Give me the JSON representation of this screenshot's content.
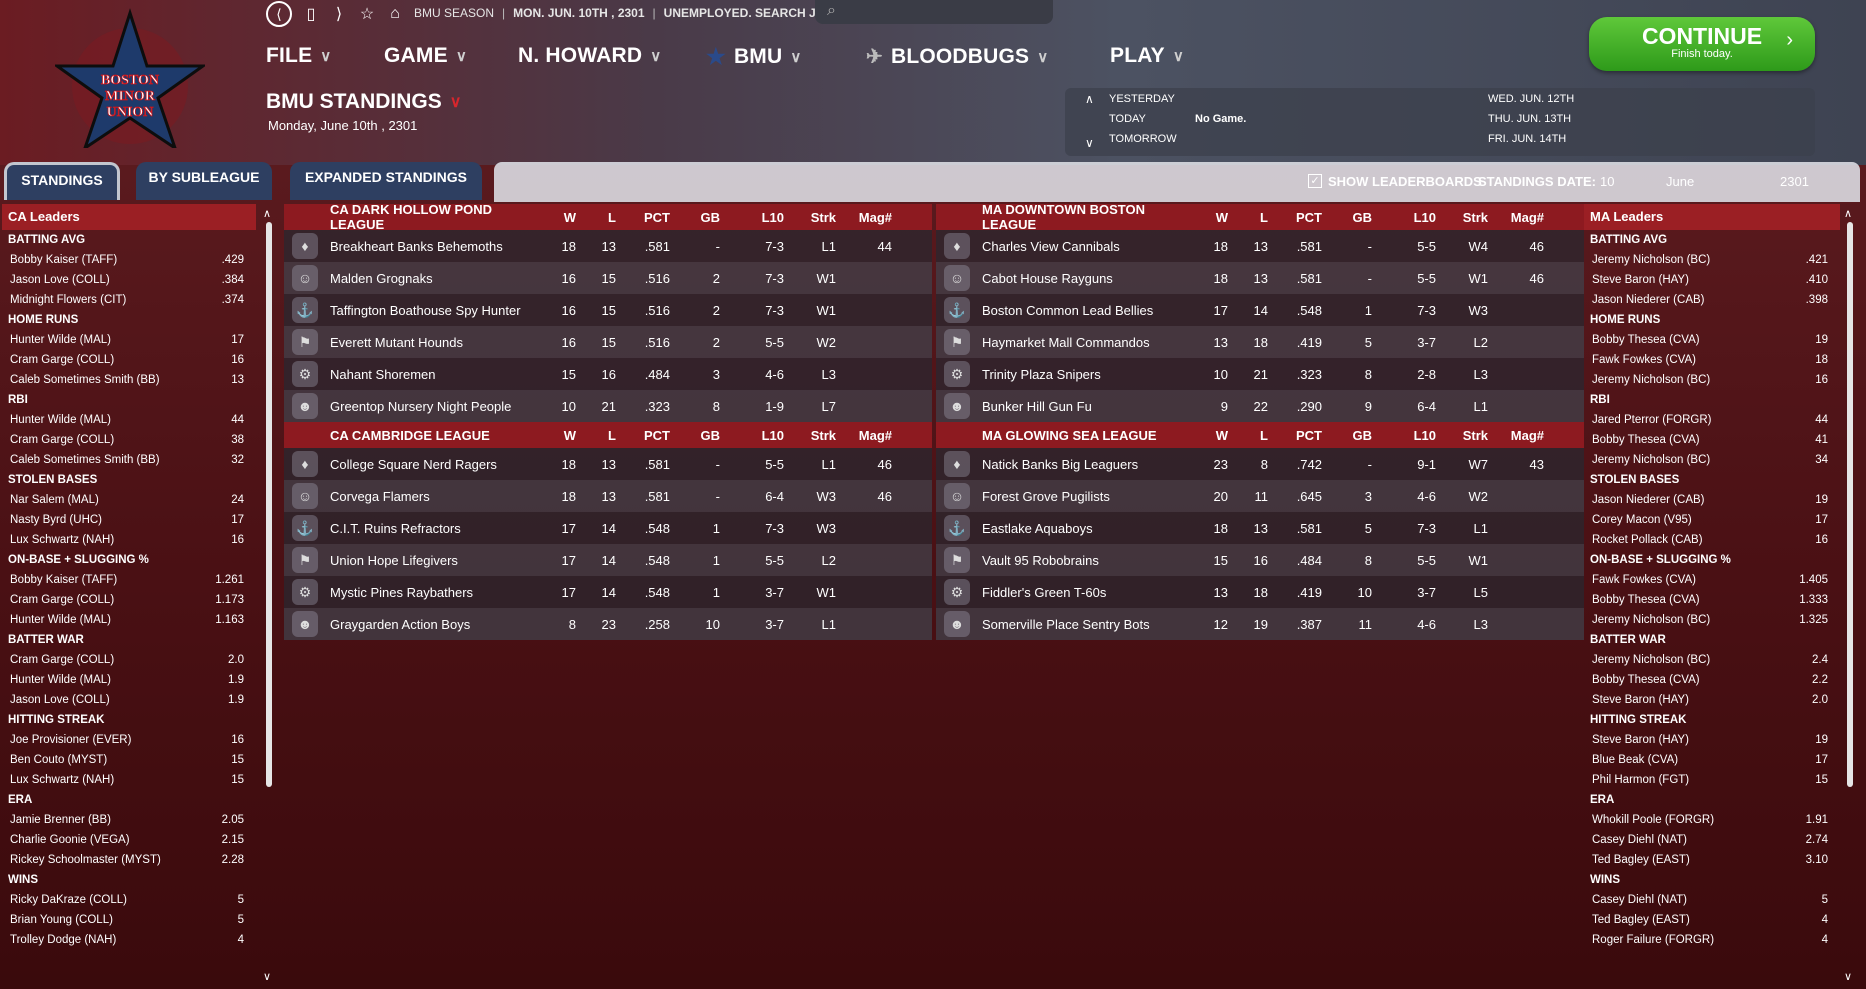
{
  "nav": {
    "back_icon": "back-icon",
    "crumbs": [
      "BMU SEASON",
      "MON. JUN. 10TH , 2301",
      "UNEMPLOYED. SEARCH JOBS..."
    ],
    "menus": [
      {
        "label": "FILE"
      },
      {
        "label": "GAME"
      },
      {
        "label": "N. HOWARD"
      },
      {
        "label": "BMU"
      },
      {
        "label": "BLOODBUGS"
      },
      {
        "label": "PLAY"
      }
    ]
  },
  "logo": {
    "line1": "BOSTON",
    "line2": "MINOR",
    "line3": "UNION"
  },
  "page": {
    "title": "BMU STANDINGS",
    "date": "Monday, June 10th , 2301"
  },
  "continue": {
    "label": "CONTINUE",
    "sub": "Finish today."
  },
  "schedule": {
    "yesterday": "YESTERDAY",
    "today": "TODAY",
    "today_value": "No Game.",
    "tomorrow": "TOMORROW",
    "upcoming": [
      "WED. JUN. 12TH",
      "THU. JUN. 13TH",
      "FRI. JUN. 14TH"
    ]
  },
  "tabs": [
    "STANDINGS",
    "BY SUBLEAGUE",
    "EXPANDED STANDINGS"
  ],
  "options": {
    "show_leaderboards": "SHOW LEADERBOARDS",
    "standings_date_label": "STANDINGS DATE:",
    "day": "10",
    "month": "June",
    "year": "2301"
  },
  "columns": [
    "W",
    "L",
    "PCT",
    "GB",
    "L10",
    "Strk",
    "Mag#"
  ],
  "leagues": [
    {
      "name": "CA DARK HOLLOW POND LEAGUE",
      "teams": [
        {
          "name": "Breakheart Banks Behemoths",
          "w": "18",
          "l": "13",
          "pct": ".581",
          "gb": "-",
          "l10": "7-3",
          "strk": "L1",
          "mag": "44"
        },
        {
          "name": "Malden Grognaks",
          "w": "16",
          "l": "15",
          "pct": ".516",
          "gb": "2",
          "l10": "7-3",
          "strk": "W1",
          "mag": ""
        },
        {
          "name": "Taffington Boathouse Spy Hunter",
          "w": "16",
          "l": "15",
          "pct": ".516",
          "gb": "2",
          "l10": "7-3",
          "strk": "W1",
          "mag": ""
        },
        {
          "name": "Everett Mutant Hounds",
          "w": "16",
          "l": "15",
          "pct": ".516",
          "gb": "2",
          "l10": "5-5",
          "strk": "W2",
          "mag": ""
        },
        {
          "name": "Nahant Shoremen",
          "w": "15",
          "l": "16",
          "pct": ".484",
          "gb": "3",
          "l10": "4-6",
          "strk": "L3",
          "mag": ""
        },
        {
          "name": "Greentop Nursery Night People",
          "w": "10",
          "l": "21",
          "pct": ".323",
          "gb": "8",
          "l10": "1-9",
          "strk": "L7",
          "mag": ""
        }
      ]
    },
    {
      "name": "CA CAMBRIDGE LEAGUE",
      "teams": [
        {
          "name": "College Square Nerd Ragers",
          "w": "18",
          "l": "13",
          "pct": ".581",
          "gb": "-",
          "l10": "5-5",
          "strk": "L1",
          "mag": "46"
        },
        {
          "name": "Corvega Flamers",
          "w": "18",
          "l": "13",
          "pct": ".581",
          "gb": "-",
          "l10": "6-4",
          "strk": "W3",
          "mag": "46"
        },
        {
          "name": "C.I.T. Ruins Refractors",
          "w": "17",
          "l": "14",
          "pct": ".548",
          "gb": "1",
          "l10": "7-3",
          "strk": "W3",
          "mag": ""
        },
        {
          "name": "Union Hope Lifegivers",
          "w": "17",
          "l": "14",
          "pct": ".548",
          "gb": "1",
          "l10": "5-5",
          "strk": "L2",
          "mag": ""
        },
        {
          "name": "Mystic Pines Raybathers",
          "w": "17",
          "l": "14",
          "pct": ".548",
          "gb": "1",
          "l10": "3-7",
          "strk": "W1",
          "mag": ""
        },
        {
          "name": "Graygarden Action Boys",
          "w": "8",
          "l": "23",
          "pct": ".258",
          "gb": "10",
          "l10": "3-7",
          "strk": "L1",
          "mag": ""
        }
      ]
    },
    {
      "name": "MA DOWNTOWN BOSTON LEAGUE",
      "teams": [
        {
          "name": "Charles View Cannibals",
          "w": "18",
          "l": "13",
          "pct": ".581",
          "gb": "-",
          "l10": "5-5",
          "strk": "W4",
          "mag": "46"
        },
        {
          "name": "Cabot House Rayguns",
          "w": "18",
          "l": "13",
          "pct": ".581",
          "gb": "-",
          "l10": "5-5",
          "strk": "W1",
          "mag": "46"
        },
        {
          "name": "Boston Common Lead Bellies",
          "w": "17",
          "l": "14",
          "pct": ".548",
          "gb": "1",
          "l10": "7-3",
          "strk": "W3",
          "mag": ""
        },
        {
          "name": "Haymarket Mall Commandos",
          "w": "13",
          "l": "18",
          "pct": ".419",
          "gb": "5",
          "l10": "3-7",
          "strk": "L2",
          "mag": ""
        },
        {
          "name": "Trinity Plaza Snipers",
          "w": "10",
          "l": "21",
          "pct": ".323",
          "gb": "8",
          "l10": "2-8",
          "strk": "L3",
          "mag": ""
        },
        {
          "name": "Bunker Hill Gun Fu",
          "w": "9",
          "l": "22",
          "pct": ".290",
          "gb": "9",
          "l10": "6-4",
          "strk": "L1",
          "mag": ""
        }
      ]
    },
    {
      "name": "MA GLOWING SEA LEAGUE",
      "teams": [
        {
          "name": "Natick Banks Big Leaguers",
          "w": "23",
          "l": "8",
          "pct": ".742",
          "gb": "-",
          "l10": "9-1",
          "strk": "W7",
          "mag": "43"
        },
        {
          "name": "Forest Grove Pugilists",
          "w": "20",
          "l": "11",
          "pct": ".645",
          "gb": "3",
          "l10": "4-6",
          "strk": "W2",
          "mag": ""
        },
        {
          "name": "Eastlake Aquaboys",
          "w": "18",
          "l": "13",
          "pct": ".581",
          "gb": "5",
          "l10": "7-3",
          "strk": "L1",
          "mag": ""
        },
        {
          "name": "Vault 95 Robobrains",
          "w": "15",
          "l": "16",
          "pct": ".484",
          "gb": "8",
          "l10": "5-5",
          "strk": "W1",
          "mag": ""
        },
        {
          "name": "Fiddler's Green T-60s",
          "w": "13",
          "l": "18",
          "pct": ".419",
          "gb": "10",
          "l10": "3-7",
          "strk": "L5",
          "mag": ""
        },
        {
          "name": "Somerville Place Sentry Bots",
          "w": "12",
          "l": "19",
          "pct": ".387",
          "gb": "11",
          "l10": "4-6",
          "strk": "L3",
          "mag": ""
        }
      ]
    }
  ],
  "ca_leaders": {
    "title": "CA Leaders",
    "categories": [
      {
        "name": "BATTING AVG",
        "rows": [
          [
            "Bobby Kaiser (TAFF)",
            ".429"
          ],
          [
            "Jason Love (COLL)",
            ".384"
          ],
          [
            "Midnight Flowers (CIT)",
            ".374"
          ]
        ]
      },
      {
        "name": "HOME RUNS",
        "rows": [
          [
            "Hunter Wilde (MAL)",
            "17"
          ],
          [
            "Cram Garge (COLL)",
            "16"
          ],
          [
            "Caleb Sometimes Smith (BB)",
            "13"
          ]
        ]
      },
      {
        "name": "RBI",
        "rows": [
          [
            "Hunter Wilde (MAL)",
            "44"
          ],
          [
            "Cram Garge (COLL)",
            "38"
          ],
          [
            "Caleb Sometimes Smith (BB)",
            "32"
          ]
        ]
      },
      {
        "name": "STOLEN BASES",
        "rows": [
          [
            "Nar Salem (MAL)",
            "24"
          ],
          [
            "Nasty Byrd (UHC)",
            "17"
          ],
          [
            "Lux Schwartz (NAH)",
            "16"
          ]
        ]
      },
      {
        "name": "ON-BASE + SLUGGING %",
        "rows": [
          [
            "Bobby Kaiser (TAFF)",
            "1.261"
          ],
          [
            "Cram Garge (COLL)",
            "1.173"
          ],
          [
            "Hunter Wilde (MAL)",
            "1.163"
          ]
        ]
      },
      {
        "name": "BATTER WAR",
        "rows": [
          [
            "Cram Garge (COLL)",
            "2.0"
          ],
          [
            "Hunter Wilde (MAL)",
            "1.9"
          ],
          [
            "Jason Love (COLL)",
            "1.9"
          ]
        ]
      },
      {
        "name": "HITTING STREAK",
        "rows": [
          [
            "Joe Provisioner (EVER)",
            "16"
          ],
          [
            "Ben Couto (MYST)",
            "15"
          ],
          [
            "Lux Schwartz (NAH)",
            "15"
          ]
        ]
      },
      {
        "name": "ERA",
        "rows": [
          [
            "Jamie Brenner (BB)",
            "2.05"
          ],
          [
            "Charlie Goonie (VEGA)",
            "2.15"
          ],
          [
            "Rickey Schoolmaster (MYST)",
            "2.28"
          ]
        ]
      },
      {
        "name": "WINS",
        "rows": [
          [
            "Ricky DaKraze (COLL)",
            "5"
          ],
          [
            "Brian Young (COLL)",
            "5"
          ],
          [
            "Trolley Dodge (NAH)",
            "4"
          ]
        ]
      }
    ]
  },
  "ma_leaders": {
    "title": "MA Leaders",
    "categories": [
      {
        "name": "BATTING AVG",
        "rows": [
          [
            "Jeremy Nicholson (BC)",
            ".421"
          ],
          [
            "Steve Baron (HAY)",
            ".410"
          ],
          [
            "Jason Niederer (CAB)",
            ".398"
          ]
        ]
      },
      {
        "name": "HOME RUNS",
        "rows": [
          [
            "Bobby Thesea (CVA)",
            "19"
          ],
          [
            "Fawk Fowkes (CVA)",
            "18"
          ],
          [
            "Jeremy Nicholson (BC)",
            "16"
          ]
        ]
      },
      {
        "name": "RBI",
        "rows": [
          [
            "Jared Pterror (FORGR)",
            "44"
          ],
          [
            "Bobby Thesea (CVA)",
            "41"
          ],
          [
            "Jeremy Nicholson (BC)",
            "34"
          ]
        ]
      },
      {
        "name": "STOLEN BASES",
        "rows": [
          [
            "Jason Niederer (CAB)",
            "19"
          ],
          [
            "Corey Macon (V95)",
            "17"
          ],
          [
            "Rocket Pollack (CAB)",
            "16"
          ]
        ]
      },
      {
        "name": "ON-BASE + SLUGGING %",
        "rows": [
          [
            "Fawk Fowkes (CVA)",
            "1.405"
          ],
          [
            "Bobby Thesea (CVA)",
            "1.333"
          ],
          [
            "Jeremy Nicholson (BC)",
            "1.325"
          ]
        ]
      },
      {
        "name": "BATTER WAR",
        "rows": [
          [
            "Jeremy Nicholson (BC)",
            "2.4"
          ],
          [
            "Bobby Thesea (CVA)",
            "2.2"
          ],
          [
            "Steve Baron (HAY)",
            "2.0"
          ]
        ]
      },
      {
        "name": "HITTING STREAK",
        "rows": [
          [
            "Steve Baron (HAY)",
            "19"
          ],
          [
            "Blue Beak (CVA)",
            "17"
          ],
          [
            "Phil Harmon (FGT)",
            "15"
          ]
        ]
      },
      {
        "name": "ERA",
        "rows": [
          [
            "Whokill Poole (FORGR)",
            "1.91"
          ],
          [
            "Casey Diehl (NAT)",
            "2.74"
          ],
          [
            "Ted Bagley (EAST)",
            "3.10"
          ]
        ]
      },
      {
        "name": "WINS",
        "rows": [
          [
            "Casey Diehl (NAT)",
            "5"
          ],
          [
            "Ted Bagley (EAST)",
            "4"
          ],
          [
            "Roger Failure (FORGR)",
            "4"
          ]
        ]
      }
    ]
  }
}
